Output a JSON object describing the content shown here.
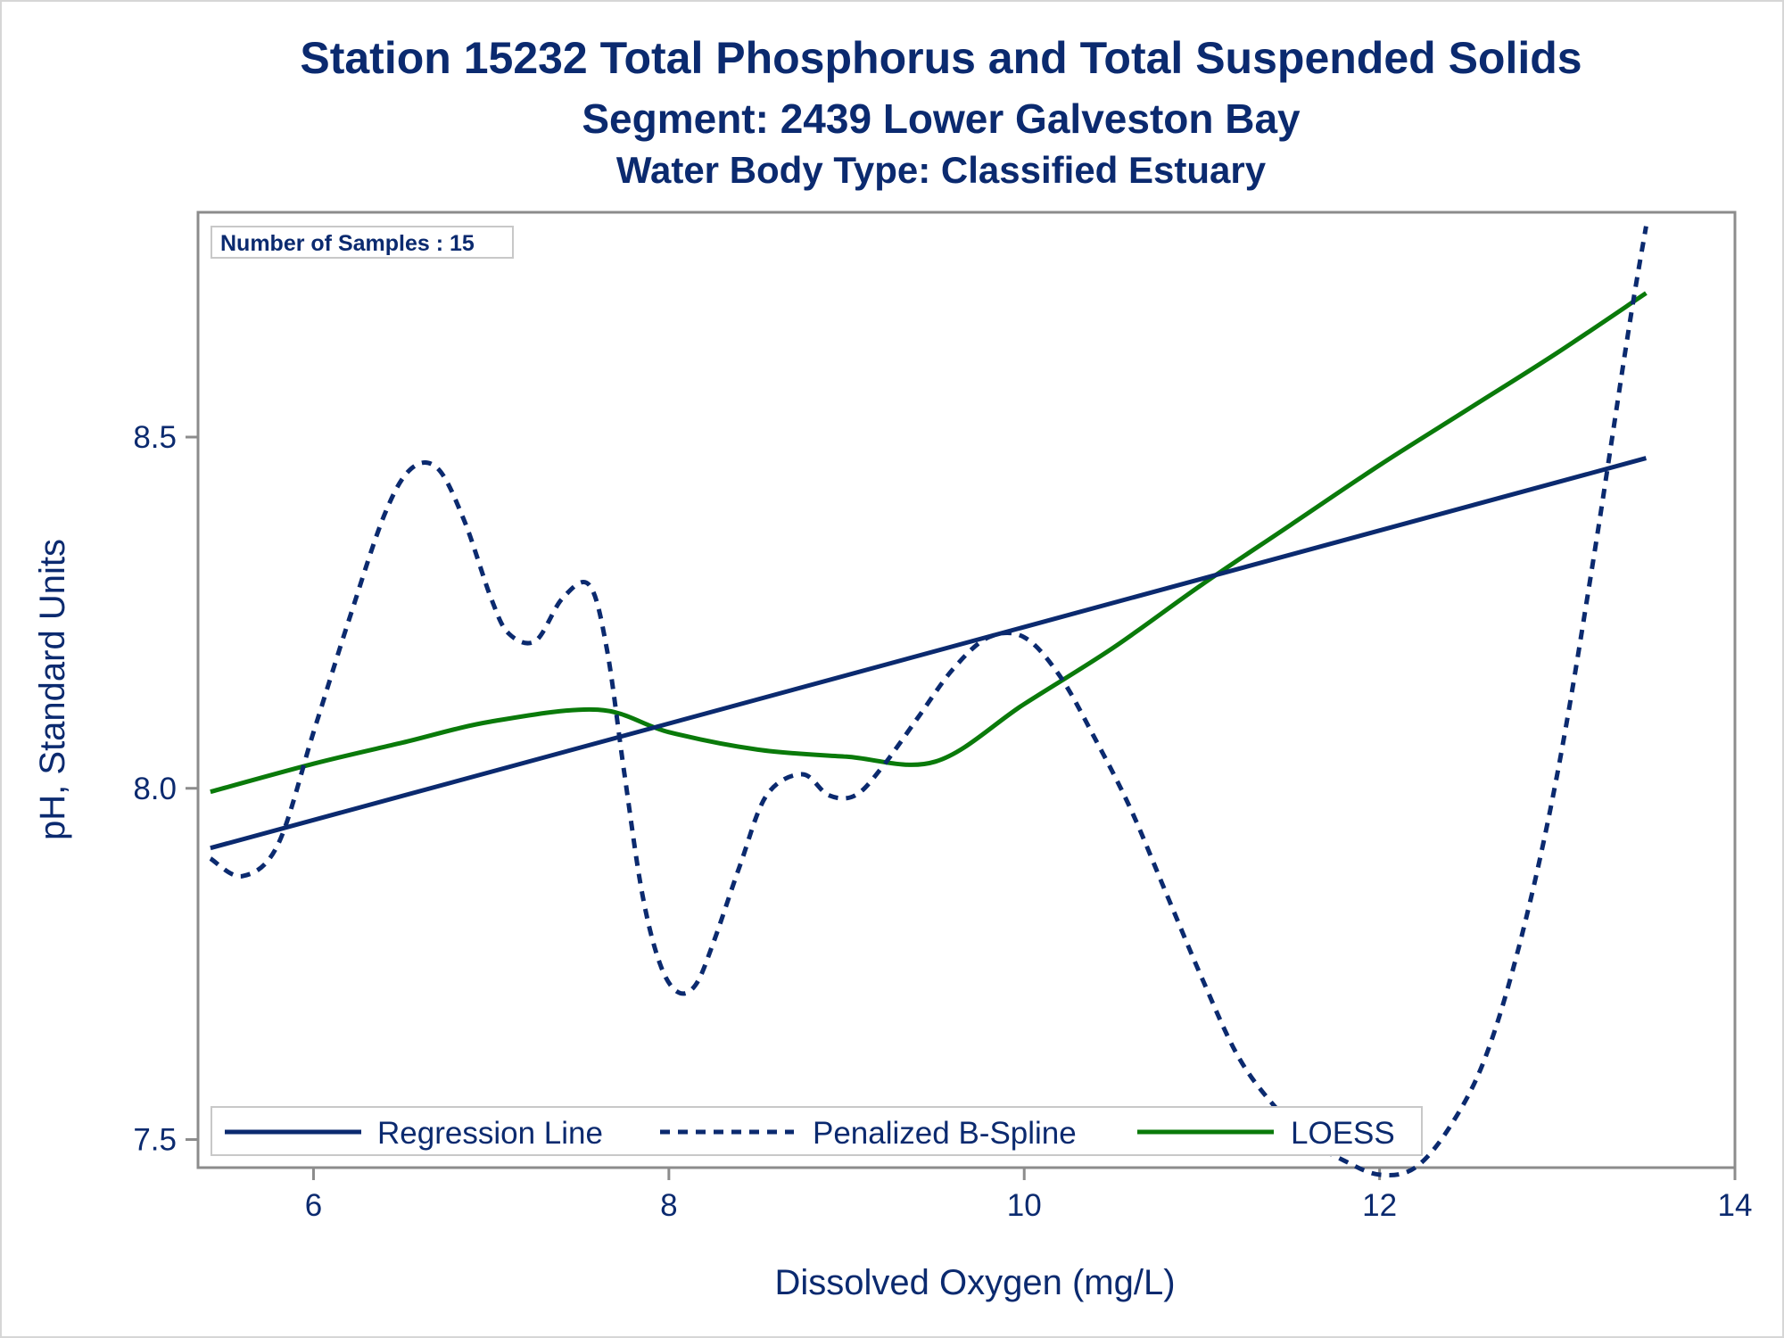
{
  "header": {
    "title": "Station 15232  Total Phosphorus and Total Suspended Solids",
    "subtitle": "Segment: 2439  Lower Galveston Bay",
    "subtitle2": "Water Body Type: Classified Estuary"
  },
  "inset": {
    "samples_label": "Number of Samples : 15"
  },
  "colors": {
    "navy": "#0b2a6f",
    "green": "#0a7a0a",
    "frame": "#8c8c8c"
  },
  "chart_data": {
    "type": "line",
    "title": "Station 15232  Total Phosphorus and Total Suspended Solids",
    "subtitle": [
      "Segment: 2439  Lower Galveston Bay",
      "Water Body Type: Classified Estuary"
    ],
    "xlabel": "Dissolved Oxygen (mg/L)",
    "ylabel": "pH, Standard Units",
    "xlim": [
      5.35,
      14.0
    ],
    "ylim": [
      7.46,
      8.82
    ],
    "xticks": [
      6,
      8,
      10,
      12,
      14
    ],
    "yticks": [
      7.5,
      8.0,
      8.5
    ],
    "xtick_labels": [
      "6",
      "8",
      "10",
      "12",
      "14"
    ],
    "ytick_labels": [
      "7.5",
      "8.0",
      "8.5"
    ],
    "grid": false,
    "legend_position": "bottom-inside",
    "series": [
      {
        "name": "Regression Line",
        "style": "solid",
        "color": "#0b2a6f",
        "x": [
          5.42,
          13.5
        ],
        "y": [
          7.915,
          8.47
        ]
      },
      {
        "name": "Penalized B-Spline",
        "style": "dashed",
        "color": "#0b2a6f",
        "x": [
          5.42,
          5.6,
          5.8,
          6.0,
          6.2,
          6.4,
          6.55,
          6.7,
          6.85,
          7.0,
          7.1,
          7.25,
          7.4,
          7.55,
          7.65,
          7.75,
          7.85,
          7.95,
          8.05,
          8.15,
          8.25,
          8.4,
          8.55,
          8.75,
          8.9,
          9.05,
          9.2,
          9.4,
          9.6,
          9.8,
          10.0,
          10.2,
          10.4,
          10.6,
          10.8,
          11.0,
          11.2,
          11.4,
          11.6,
          11.8,
          12.0,
          12.2,
          12.4,
          12.6,
          12.8,
          13.0,
          13.2,
          13.4,
          13.5
        ],
        "y": [
          7.9,
          7.875,
          7.92,
          8.08,
          8.24,
          8.39,
          8.455,
          8.455,
          8.38,
          8.27,
          8.22,
          8.21,
          8.27,
          8.29,
          8.2,
          8.02,
          7.85,
          7.75,
          7.71,
          7.72,
          7.78,
          7.89,
          7.99,
          8.02,
          7.99,
          7.99,
          8.03,
          8.1,
          8.17,
          8.215,
          8.215,
          8.16,
          8.07,
          7.97,
          7.85,
          7.73,
          7.62,
          7.55,
          7.5,
          7.47,
          7.45,
          7.46,
          7.52,
          7.62,
          7.79,
          8.02,
          8.32,
          8.65,
          8.8
        ]
      },
      {
        "name": "LOESS",
        "style": "solid",
        "color": "#0a7a0a",
        "x": [
          5.42,
          6.0,
          6.5,
          7.0,
          7.6,
          8.0,
          8.5,
          9.0,
          9.5,
          10.0,
          10.5,
          11.0,
          11.5,
          12.0,
          12.5,
          13.0,
          13.5
        ],
        "y": [
          7.995,
          8.035,
          8.065,
          8.095,
          8.112,
          8.08,
          8.055,
          8.045,
          8.038,
          8.12,
          8.2,
          8.29,
          8.375,
          8.46,
          8.54,
          8.62,
          8.705
        ]
      }
    ]
  }
}
